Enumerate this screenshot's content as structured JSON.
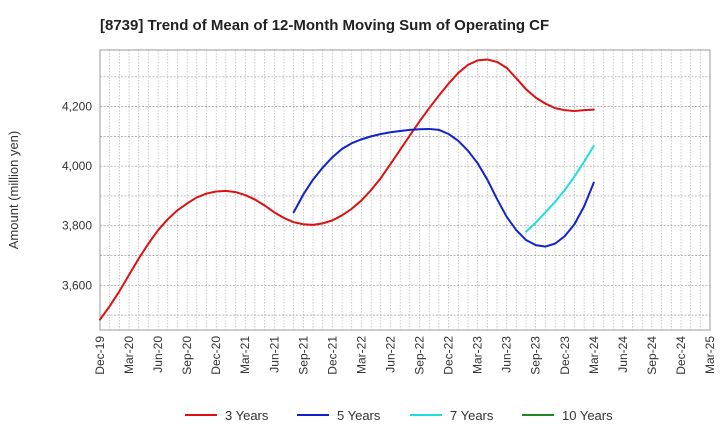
{
  "chart_data": {
    "type": "line",
    "title": "[8739]  Trend of Mean of 12-Month Moving Sum of Operating CF",
    "xlabel": "",
    "ylabel": "Amount (million yen)",
    "x_tick_labels": [
      "Dec-19",
      "Mar-20",
      "Jun-20",
      "Sep-20",
      "Dec-20",
      "Mar-21",
      "Jun-21",
      "Sep-21",
      "Dec-21",
      "Mar-22",
      "Jun-22",
      "Sep-22",
      "Dec-22",
      "Mar-23",
      "Jun-23",
      "Sep-23",
      "Dec-23",
      "Mar-24",
      "Jun-24",
      "Sep-24",
      "Dec-24",
      "Mar-25"
    ],
    "xlim_months": [
      0,
      63
    ],
    "ylim": [
      3450,
      4390
    ],
    "y_ticks": [
      3600,
      3800,
      4000,
      4200
    ],
    "y_tick_labels": [
      "3,600",
      "3,800",
      "4,000",
      "4,200"
    ],
    "grid": true,
    "legend_position": "bottom",
    "series": [
      {
        "name": "3 Years",
        "color": "#dd1111",
        "x": [
          0,
          1,
          2,
          3,
          4,
          5,
          6,
          7,
          8,
          9,
          10,
          11,
          12,
          13,
          14,
          15,
          16,
          17,
          18,
          19,
          20,
          21,
          22,
          23,
          24,
          25,
          26,
          27,
          28,
          29,
          30,
          31,
          32,
          33,
          34,
          35,
          36,
          37,
          38,
          39,
          40,
          41,
          42,
          43,
          44,
          45,
          46,
          47,
          48,
          49,
          50,
          51
        ],
        "values": [
          3485,
          3530,
          3580,
          3635,
          3690,
          3740,
          3785,
          3822,
          3852,
          3875,
          3895,
          3908,
          3915,
          3917,
          3913,
          3903,
          3888,
          3868,
          3845,
          3826,
          3812,
          3805,
          3803,
          3808,
          3818,
          3835,
          3857,
          3885,
          3920,
          3960,
          4007,
          4055,
          4103,
          4150,
          4195,
          4237,
          4277,
          4313,
          4340,
          4355,
          4358,
          4350,
          4330,
          4295,
          4258,
          4230,
          4210,
          4195,
          4188,
          4185,
          4188,
          4190
        ]
      },
      {
        "name": "5 Years",
        "color": "#1122cc",
        "x": [
          20,
          21,
          22,
          23,
          24,
          25,
          26,
          27,
          28,
          29,
          30,
          31,
          32,
          33,
          34,
          35,
          36,
          37,
          38,
          39,
          40,
          41,
          42,
          43,
          44,
          45,
          46,
          47,
          48,
          49,
          50,
          51
        ],
        "values": [
          3845,
          3905,
          3955,
          3995,
          4030,
          4058,
          4077,
          4090,
          4100,
          4108,
          4114,
          4118,
          4122,
          4124,
          4125,
          4122,
          4108,
          4085,
          4052,
          4010,
          3955,
          3890,
          3830,
          3785,
          3752,
          3735,
          3730,
          3740,
          3765,
          3805,
          3865,
          3945
        ]
      },
      {
        "name": "7 Years",
        "color": "#22dddd",
        "x": [
          44,
          45,
          46,
          47,
          48,
          49,
          50,
          51
        ],
        "values": [
          3780,
          3810,
          3845,
          3880,
          3920,
          3965,
          4015,
          4068
        ]
      },
      {
        "name": "10 Years",
        "color": "#228822",
        "x": [],
        "values": []
      }
    ]
  }
}
